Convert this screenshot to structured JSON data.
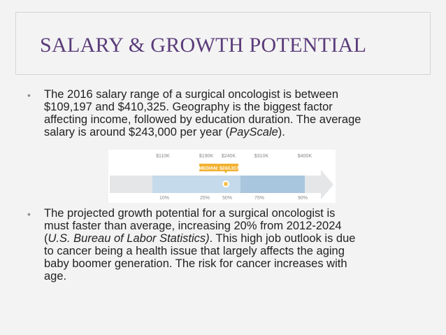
{
  "slide": {
    "title": "SALARY & GROWTH POTENTIAL",
    "bullet1": {
      "line1": "The 2016 salary range of a surgical oncologist is between",
      "line2": "$109,197 and $410,325. Geography is the biggest factor",
      "line3": "affecting income, followed by education duration. The average",
      "line4_pre": "salary is around $243,000 per year (",
      "line4_source": "PayScale",
      "line4_post": ")."
    },
    "bullet2": {
      "line1": "The projected growth potential for a surgical oncologist is",
      "line2": "must faster than average, increasing 20% from 2012-2024",
      "line3_open": "(",
      "line3_source": "U.S. Bureau of Labor Statistics)",
      "line3_post": ". This high job outlook is due",
      "line4": "to cancer being a health issue that largely affects the aging",
      "line5": "baby boomer generation. The risk for cancer increases with",
      "line6": "age."
    }
  },
  "salary_chart": {
    "top_labels": [
      "$110K",
      "$190K",
      "$240K",
      "$310K",
      "$400K"
    ],
    "median_label": "MEDIAN: $243,317",
    "bottom_labels": [
      "10%",
      "25%",
      "50%",
      "75%",
      "90%"
    ],
    "colors": {
      "arrow": "#e4e6e8",
      "band_light": "#c5daea",
      "band_mid": "#a8c6de",
      "median_badge": "#f2b233",
      "median_dot": "#f6c24c"
    }
  }
}
